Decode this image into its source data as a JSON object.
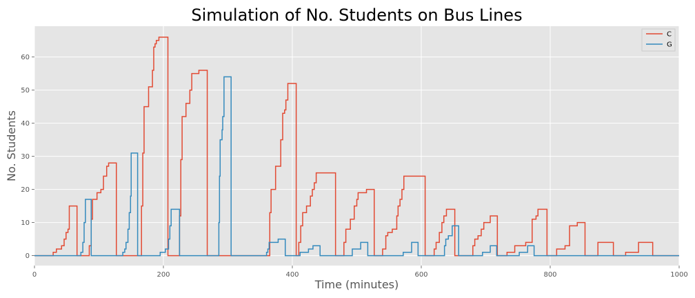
{
  "chart_data": {
    "type": "line",
    "title": "Simulation of No. Students on Bus Lines",
    "xlabel": "Time (minutes)",
    "ylabel": "No. Students",
    "xlim": [
      0,
      1000
    ],
    "ylim": [
      -3,
      69.3
    ],
    "x_ticks": [
      0,
      200,
      400,
      600,
      800,
      1000
    ],
    "y_ticks": [
      0,
      10,
      20,
      30,
      40,
      50,
      60
    ],
    "x_tick_labels": [
      "0",
      "200",
      "400",
      "600",
      "800",
      "1000"
    ],
    "y_tick_labels": [
      "0",
      "10",
      "20",
      "30",
      "40",
      "50",
      "60"
    ],
    "grid": true,
    "legend_position": "top-right",
    "line_style": "step",
    "background_color": "#e5e5e5",
    "grid_color": "#ffffff",
    "series": [
      {
        "name": "C",
        "color": "#e24a33",
        "points": [
          [
            0,
            0
          ],
          [
            29,
            0
          ],
          [
            29,
            1
          ],
          [
            34,
            1
          ],
          [
            34,
            2
          ],
          [
            42,
            2
          ],
          [
            42,
            3
          ],
          [
            46,
            3
          ],
          [
            46,
            5
          ],
          [
            49,
            5
          ],
          [
            49,
            7
          ],
          [
            52,
            7
          ],
          [
            52,
            8
          ],
          [
            54,
            8
          ],
          [
            54,
            15
          ],
          [
            66,
            15
          ],
          [
            66,
            0
          ],
          [
            85,
            0
          ],
          [
            85,
            3
          ],
          [
            88,
            3
          ],
          [
            88,
            11
          ],
          [
            90,
            11
          ],
          [
            90,
            17
          ],
          [
            97,
            17
          ],
          [
            97,
            19
          ],
          [
            103,
            19
          ],
          [
            103,
            20
          ],
          [
            107,
            20
          ],
          [
            107,
            24
          ],
          [
            112,
            24
          ],
          [
            112,
            27
          ],
          [
            115,
            27
          ],
          [
            115,
            28
          ],
          [
            127,
            28
          ],
          [
            127,
            0
          ],
          [
            166,
            0
          ],
          [
            166,
            15
          ],
          [
            168,
            15
          ],
          [
            168,
            31
          ],
          [
            170,
            31
          ],
          [
            170,
            45
          ],
          [
            177,
            45
          ],
          [
            177,
            51
          ],
          [
            183,
            51
          ],
          [
            183,
            56
          ],
          [
            185,
            56
          ],
          [
            185,
            63
          ],
          [
            187,
            63
          ],
          [
            187,
            64
          ],
          [
            189,
            64
          ],
          [
            189,
            65
          ],
          [
            193,
            65
          ],
          [
            193,
            66
          ],
          [
            207,
            66
          ],
          [
            207,
            0
          ],
          [
            225,
            0
          ],
          [
            225,
            12
          ],
          [
            227,
            12
          ],
          [
            227,
            29
          ],
          [
            229,
            29
          ],
          [
            229,
            42
          ],
          [
            235,
            42
          ],
          [
            235,
            46
          ],
          [
            241,
            46
          ],
          [
            241,
            50
          ],
          [
            244,
            50
          ],
          [
            244,
            55
          ],
          [
            255,
            55
          ],
          [
            255,
            56
          ],
          [
            268,
            56
          ],
          [
            268,
            0
          ],
          [
            365,
            0
          ],
          [
            365,
            13
          ],
          [
            367,
            13
          ],
          [
            367,
            20
          ],
          [
            374,
            20
          ],
          [
            374,
            27
          ],
          [
            382,
            27
          ],
          [
            382,
            35
          ],
          [
            385,
            35
          ],
          [
            385,
            43
          ],
          [
            388,
            43
          ],
          [
            388,
            44
          ],
          [
            390,
            44
          ],
          [
            390,
            47
          ],
          [
            393,
            47
          ],
          [
            393,
            52
          ],
          [
            406,
            52
          ],
          [
            406,
            0
          ],
          [
            410,
            0
          ],
          [
            410,
            4
          ],
          [
            413,
            4
          ],
          [
            413,
            9
          ],
          [
            416,
            9
          ],
          [
            416,
            13
          ],
          [
            422,
            13
          ],
          [
            422,
            15
          ],
          [
            428,
            15
          ],
          [
            428,
            18
          ],
          [
            431,
            18
          ],
          [
            431,
            20
          ],
          [
            434,
            20
          ],
          [
            434,
            22
          ],
          [
            437,
            22
          ],
          [
            437,
            25
          ],
          [
            467,
            25
          ],
          [
            467,
            0
          ],
          [
            480,
            0
          ],
          [
            480,
            4
          ],
          [
            483,
            4
          ],
          [
            483,
            8
          ],
          [
            490,
            8
          ],
          [
            490,
            11
          ],
          [
            496,
            11
          ],
          [
            496,
            15
          ],
          [
            500,
            15
          ],
          [
            500,
            17
          ],
          [
            502,
            17
          ],
          [
            502,
            19
          ],
          [
            515,
            19
          ],
          [
            515,
            20
          ],
          [
            527,
            20
          ],
          [
            527,
            0
          ],
          [
            540,
            0
          ],
          [
            540,
            2
          ],
          [
            545,
            2
          ],
          [
            545,
            6
          ],
          [
            548,
            6
          ],
          [
            548,
            7
          ],
          [
            555,
            7
          ],
          [
            555,
            8
          ],
          [
            562,
            8
          ],
          [
            562,
            12
          ],
          [
            564,
            12
          ],
          [
            564,
            15
          ],
          [
            567,
            15
          ],
          [
            567,
            17
          ],
          [
            570,
            17
          ],
          [
            570,
            20
          ],
          [
            573,
            20
          ],
          [
            573,
            24
          ],
          [
            606,
            24
          ],
          [
            606,
            0
          ],
          [
            620,
            0
          ],
          [
            620,
            2
          ],
          [
            623,
            2
          ],
          [
            623,
            4
          ],
          [
            628,
            4
          ],
          [
            628,
            7
          ],
          [
            632,
            7
          ],
          [
            632,
            10
          ],
          [
            635,
            10
          ],
          [
            635,
            12
          ],
          [
            639,
            12
          ],
          [
            639,
            14
          ],
          [
            652,
            14
          ],
          [
            652,
            0
          ],
          [
            680,
            0
          ],
          [
            680,
            3
          ],
          [
            683,
            3
          ],
          [
            683,
            5
          ],
          [
            688,
            5
          ],
          [
            688,
            6
          ],
          [
            693,
            6
          ],
          [
            693,
            8
          ],
          [
            697,
            8
          ],
          [
            697,
            10
          ],
          [
            707,
            10
          ],
          [
            707,
            12
          ],
          [
            718,
            12
          ],
          [
            718,
            0
          ],
          [
            733,
            0
          ],
          [
            733,
            1
          ],
          [
            745,
            1
          ],
          [
            745,
            3
          ],
          [
            762,
            3
          ],
          [
            762,
            4
          ],
          [
            772,
            4
          ],
          [
            772,
            11
          ],
          [
            778,
            11
          ],
          [
            778,
            12
          ],
          [
            781,
            12
          ],
          [
            781,
            14
          ],
          [
            795,
            14
          ],
          [
            795,
            0
          ],
          [
            810,
            0
          ],
          [
            810,
            2
          ],
          [
            823,
            2
          ],
          [
            823,
            3
          ],
          [
            830,
            3
          ],
          [
            830,
            9
          ],
          [
            842,
            9
          ],
          [
            842,
            10
          ],
          [
            854,
            10
          ],
          [
            854,
            0
          ],
          [
            874,
            0
          ],
          [
            874,
            4
          ],
          [
            898,
            4
          ],
          [
            898,
            0
          ],
          [
            917,
            0
          ],
          [
            917,
            1
          ],
          [
            937,
            1
          ],
          [
            937,
            4
          ],
          [
            959,
            4
          ],
          [
            959,
            0
          ],
          [
            1000,
            0
          ]
        ]
      },
      {
        "name": "G",
        "color": "#348abd",
        "points": [
          [
            0,
            0
          ],
          [
            72,
            0
          ],
          [
            72,
            1
          ],
          [
            75,
            1
          ],
          [
            75,
            4
          ],
          [
            77,
            4
          ],
          [
            77,
            10
          ],
          [
            79,
            10
          ],
          [
            79,
            17
          ],
          [
            88,
            17
          ],
          [
            88,
            0
          ],
          [
            137,
            0
          ],
          [
            137,
            1
          ],
          [
            140,
            1
          ],
          [
            140,
            2
          ],
          [
            142,
            2
          ],
          [
            142,
            4
          ],
          [
            145,
            4
          ],
          [
            145,
            8
          ],
          [
            147,
            8
          ],
          [
            147,
            13
          ],
          [
            149,
            13
          ],
          [
            149,
            18
          ],
          [
            150,
            18
          ],
          [
            150,
            31
          ],
          [
            160,
            31
          ],
          [
            160,
            0
          ],
          [
            195,
            0
          ],
          [
            195,
            1
          ],
          [
            203,
            1
          ],
          [
            203,
            2
          ],
          [
            208,
            2
          ],
          [
            208,
            5
          ],
          [
            210,
            5
          ],
          [
            210,
            9
          ],
          [
            212,
            9
          ],
          [
            212,
            14
          ],
          [
            225,
            14
          ],
          [
            225,
            0
          ],
          [
            286,
            0
          ],
          [
            286,
            10
          ],
          [
            287,
            10
          ],
          [
            287,
            24
          ],
          [
            288,
            24
          ],
          [
            288,
            35
          ],
          [
            291,
            35
          ],
          [
            291,
            38
          ],
          [
            292,
            38
          ],
          [
            292,
            42
          ],
          [
            294,
            42
          ],
          [
            294,
            54
          ],
          [
            305,
            54
          ],
          [
            305,
            0
          ],
          [
            360,
            0
          ],
          [
            360,
            1
          ],
          [
            362,
            1
          ],
          [
            362,
            2
          ],
          [
            364,
            2
          ],
          [
            364,
            4
          ],
          [
            378,
            4
          ],
          [
            378,
            5
          ],
          [
            389,
            5
          ],
          [
            389,
            0
          ],
          [
            412,
            0
          ],
          [
            412,
            1
          ],
          [
            425,
            1
          ],
          [
            425,
            2
          ],
          [
            432,
            2
          ],
          [
            432,
            3
          ],
          [
            443,
            3
          ],
          [
            443,
            0
          ],
          [
            493,
            0
          ],
          [
            493,
            2
          ],
          [
            506,
            2
          ],
          [
            506,
            4
          ],
          [
            517,
            4
          ],
          [
            517,
            0
          ],
          [
            572,
            0
          ],
          [
            572,
            1
          ],
          [
            585,
            1
          ],
          [
            585,
            4
          ],
          [
            595,
            4
          ],
          [
            595,
            0
          ],
          [
            636,
            0
          ],
          [
            636,
            3
          ],
          [
            638,
            3
          ],
          [
            638,
            5
          ],
          [
            642,
            5
          ],
          [
            642,
            6
          ],
          [
            648,
            6
          ],
          [
            648,
            9
          ],
          [
            658,
            9
          ],
          [
            658,
            0
          ],
          [
            695,
            0
          ],
          [
            695,
            1
          ],
          [
            707,
            1
          ],
          [
            707,
            3
          ],
          [
            717,
            3
          ],
          [
            717,
            0
          ],
          [
            752,
            0
          ],
          [
            752,
            1
          ],
          [
            765,
            1
          ],
          [
            765,
            3
          ],
          [
            775,
            3
          ],
          [
            775,
            0
          ],
          [
            1000,
            0
          ]
        ]
      }
    ]
  }
}
